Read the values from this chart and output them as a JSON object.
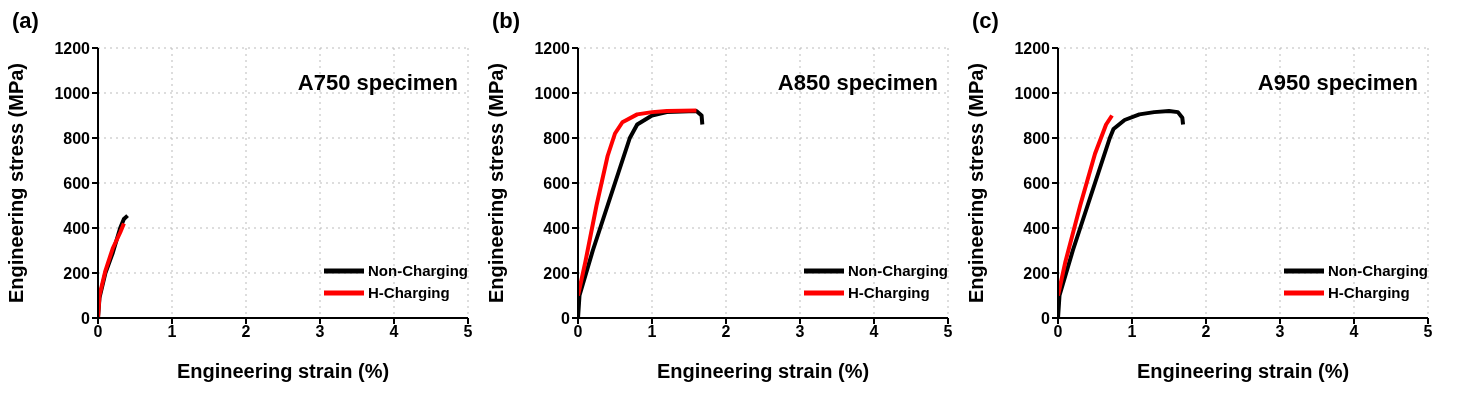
{
  "chart_data": [
    {
      "type": "line",
      "title": "(a)",
      "xlabel": "Engineering strain (%)",
      "ylabel": "Engineering stress (MPa)",
      "annotations": [
        "A750 specimen"
      ],
      "xlim": [
        0,
        5
      ],
      "xticks": [
        0,
        1,
        2,
        3,
        4,
        5
      ],
      "ylim": [
        0,
        1200
      ],
      "yticks": [
        0,
        200,
        400,
        600,
        800,
        1000,
        1200
      ],
      "grid": true,
      "legend": "bottom right",
      "marker": "none",
      "line_style": "solid",
      "series": [
        {
          "name": "Non-Charging",
          "color": "#000000",
          "x": [
            0,
            0.02,
            0.1,
            0.2,
            0.3,
            0.35,
            0.4
          ],
          "values": [
            0,
            90,
            200,
            290,
            400,
            440,
            455
          ]
        },
        {
          "name": "H-Charging",
          "color": "#ff0000",
          "x": [
            0,
            0.02,
            0.1,
            0.2,
            0.3,
            0.35
          ],
          "values": [
            0,
            100,
            210,
            310,
            380,
            420
          ]
        }
      ]
    },
    {
      "type": "line",
      "title": "(b)",
      "xlabel": "Engineering strain (%)",
      "ylabel": "Engineering stress (MPa)",
      "annotations": [
        "A850 specimen"
      ],
      "xlim": [
        0,
        5
      ],
      "xticks": [
        0,
        1,
        2,
        3,
        4,
        5
      ],
      "ylim": [
        0,
        1200
      ],
      "yticks": [
        0,
        200,
        400,
        600,
        800,
        1000,
        1200
      ],
      "grid": true,
      "legend": "bottom right",
      "marker": "none",
      "line_style": "solid",
      "series": [
        {
          "name": "Non-Charging",
          "color": "#000000",
          "x": [
            0,
            0.02,
            0.2,
            0.4,
            0.55,
            0.7,
            0.8,
            1.0,
            1.2,
            1.6,
            1.67,
            1.68
          ],
          "values": [
            0,
            100,
            300,
            500,
            650,
            800,
            860,
            900,
            915,
            920,
            900,
            860
          ]
        },
        {
          "name": "H-Charging",
          "color": "#ff0000",
          "x": [
            0,
            0.1,
            0.25,
            0.4,
            0.5,
            0.6,
            0.8,
            1.0,
            1.2,
            1.6
          ],
          "values": [
            100,
            250,
            500,
            720,
            820,
            870,
            905,
            915,
            920,
            922
          ]
        }
      ]
    },
    {
      "type": "line",
      "title": "(c)",
      "xlabel": "Engineering strain (%)",
      "ylabel": "Engineering stress (MPa)",
      "annotations": [
        "A950 specimen"
      ],
      "xlim": [
        0,
        5
      ],
      "xticks": [
        0,
        1,
        2,
        3,
        4,
        5
      ],
      "ylim": [
        0,
        1200
      ],
      "yticks": [
        0,
        200,
        400,
        600,
        800,
        1000,
        1200
      ],
      "grid": true,
      "legend": "bottom right",
      "marker": "none",
      "line_style": "solid",
      "series": [
        {
          "name": "Non-Charging",
          "color": "#000000",
          "x": [
            0,
            0.02,
            0.2,
            0.4,
            0.55,
            0.7,
            0.75,
            0.9,
            1.1,
            1.3,
            1.5,
            1.62,
            1.68,
            1.69
          ],
          "values": [
            0,
            100,
            300,
            500,
            650,
            800,
            840,
            880,
            905,
            915,
            920,
            915,
            890,
            860
          ]
        },
        {
          "name": "H-Charging",
          "color": "#ff0000",
          "x": [
            0,
            0.1,
            0.3,
            0.5,
            0.65,
            0.73
          ],
          "values": [
            100,
            250,
            500,
            730,
            860,
            900
          ]
        }
      ]
    }
  ]
}
